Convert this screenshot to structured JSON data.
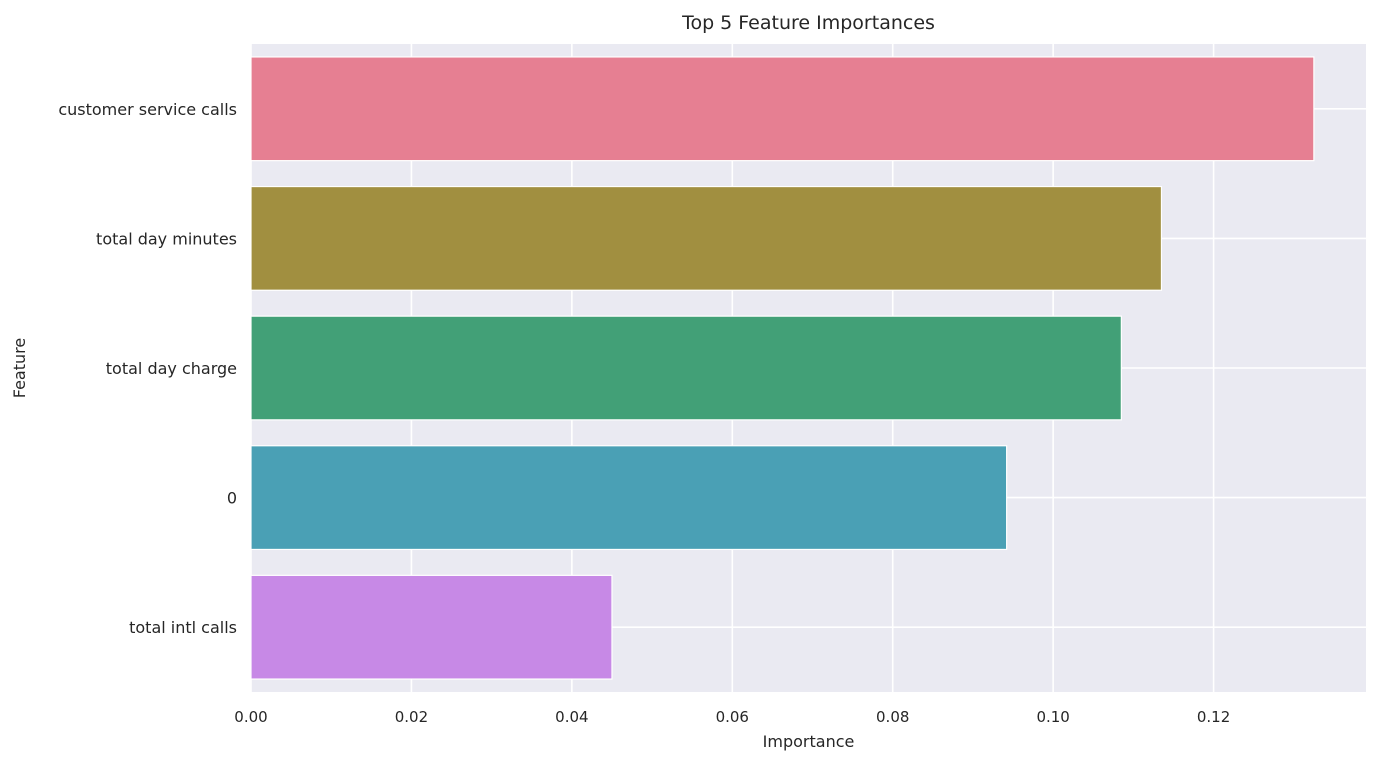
{
  "chart_data": {
    "type": "bar",
    "orientation": "horizontal",
    "title": "Top 5 Feature Importances",
    "xlabel": "Importance",
    "ylabel": "Feature",
    "categories": [
      "customer service calls",
      "total day minutes",
      "total day charge",
      "0",
      "total intl calls"
    ],
    "values": [
      0.1325,
      0.1135,
      0.1085,
      0.0942,
      0.045
    ],
    "colors": [
      "#e67f92",
      "#a18f40",
      "#42a077",
      "#4aa0b5",
      "#c789e6"
    ],
    "xlim": [
      0.0,
      0.139
    ],
    "xticks": [
      0.0,
      0.02,
      0.04,
      0.06,
      0.08,
      0.1,
      0.12
    ],
    "xtick_labels": [
      "0.00",
      "0.02",
      "0.04",
      "0.06",
      "0.08",
      "0.10",
      "0.12"
    ],
    "grid": true,
    "background_color": "#eaeaf2",
    "grid_color": "#ffffff"
  }
}
